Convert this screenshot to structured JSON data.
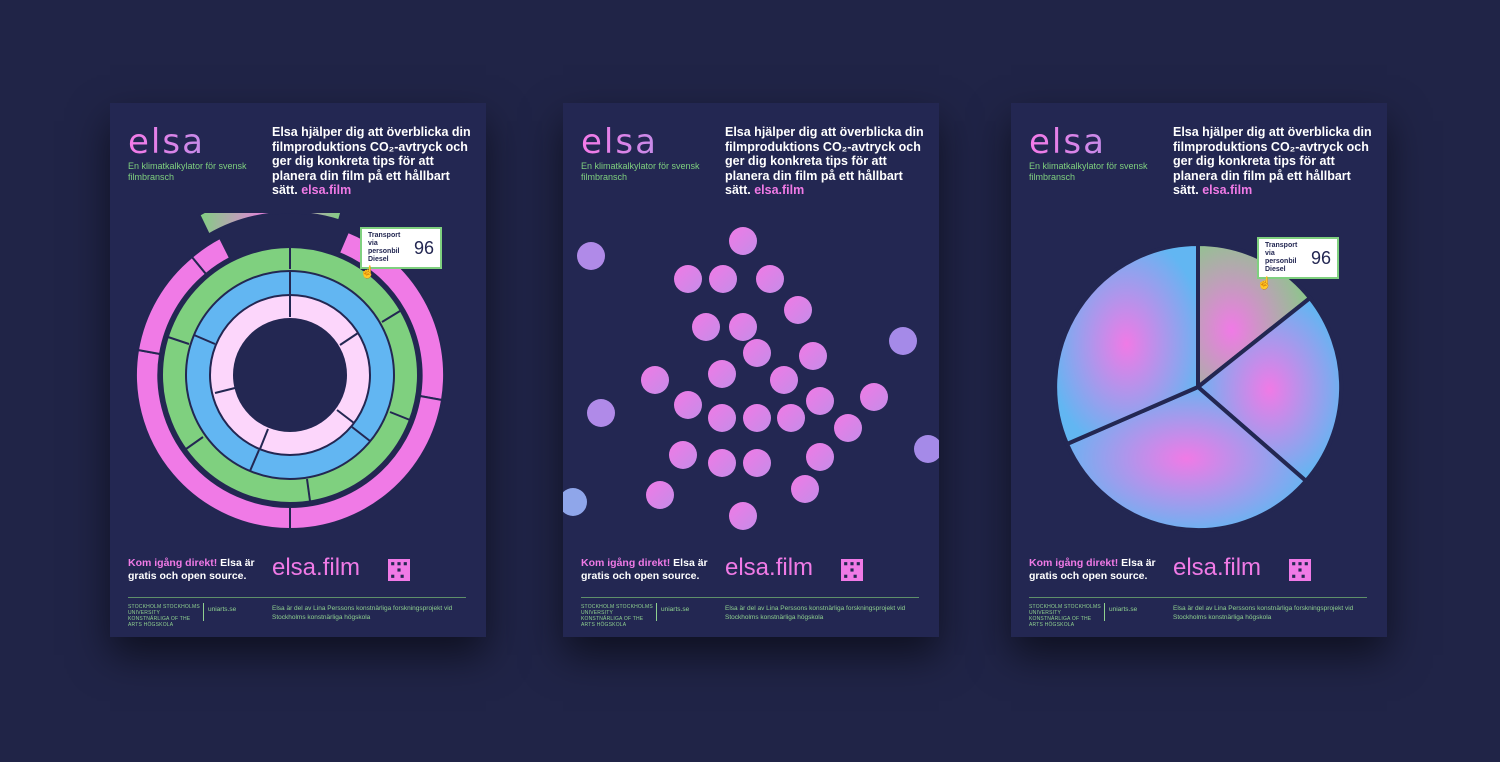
{
  "logo": "elsa",
  "tagline": "En klimatkalkylator för svensk filmbransch",
  "headline": "Elsa hjälper dig att överblicka din filmproduktions CO₂-avtryck och ger dig konkreta tips för att planera din film på ett hållbart sätt.",
  "headline_link": "elsa.film",
  "tooltip": {
    "label": "Transport via personbil Diesel",
    "value": "96"
  },
  "cta_highlight": "Kom igång direkt!",
  "cta_rest": " Elsa är gratis och open source.",
  "big_url": "elsa.film",
  "uni_logo": "STOCKHOLM STOCKHOLMS UNIVERSITY KONSTNÄRLIGA OF THE ARTS HÖGSKOLA",
  "uni_url": "uniarts.se",
  "footer_note": "Elsa är del av Lina Perssons konstnärliga forskningsprojekt vid Stockholms konstnärliga högskola",
  "colors": {
    "background": "#202447",
    "poster": "#232752",
    "pink": "#f07ae6",
    "green": "#7fd07f",
    "blue": "#62b6f2",
    "light_pink": "#fcd6fb"
  }
}
